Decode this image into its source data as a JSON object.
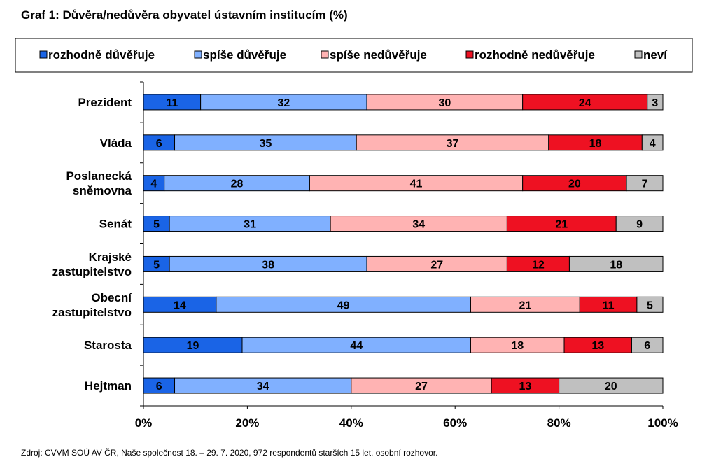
{
  "chart_data": {
    "type": "bar",
    "orientation": "horizontal",
    "stacked": "percent",
    "title": "Graf 1: Důvěra/nedůvěra obyvatel ústavním institucím (%)",
    "source": "Zdroj: CVVM SOÚ AV ČR, Naše společnost 18. – 29. 7. 2020, 972 respondentů starších 15 let, osobní rozhovor.",
    "categories": [
      [
        "Prezident"
      ],
      [
        "Vláda"
      ],
      [
        "Poslanecká",
        "sněmovna"
      ],
      [
        "Senát"
      ],
      [
        "Krajské",
        "zastupitelstvo"
      ],
      [
        "Obecní",
        "zastupitelstvo"
      ],
      [
        "Starosta"
      ],
      [
        "Hejtman"
      ]
    ],
    "series": [
      {
        "name": "rozhodně důvěřuje",
        "color": "#1a64e6",
        "values": [
          11,
          6,
          4,
          5,
          5,
          14,
          19,
          6
        ]
      },
      {
        "name": "spíše důvěřuje",
        "color": "#80b0ff",
        "values": [
          32,
          35,
          28,
          31,
          38,
          49,
          44,
          34
        ]
      },
      {
        "name": "spíše nedůvěřuje",
        "color": "#ffb3b3",
        "values": [
          30,
          37,
          41,
          34,
          27,
          21,
          18,
          27
        ]
      },
      {
        "name": "rozhodně nedůvěřuje",
        "color": "#ee1122",
        "values": [
          24,
          18,
          20,
          21,
          12,
          11,
          13,
          13
        ]
      },
      {
        "name": "neví",
        "color": "#c0c0c0",
        "values": [
          3,
          4,
          7,
          9,
          18,
          5,
          6,
          20
        ]
      }
    ],
    "xticks": [
      "0%",
      "20%",
      "40%",
      "60%",
      "80%",
      "100%"
    ],
    "xlim": [
      0,
      100
    ],
    "legend_position": "top",
    "grid": false
  }
}
